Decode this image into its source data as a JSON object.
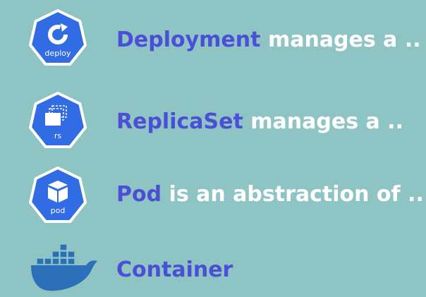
{
  "items": [
    {
      "icon_label": "deploy",
      "keyword": "Deployment",
      "text": "manages a .."
    },
    {
      "icon_label": "rs",
      "keyword": "ReplicaSet",
      "text": "manages a .."
    },
    {
      "icon_label": "pod",
      "keyword": "Pod",
      "text": "is an abstraction of .."
    },
    {
      "keyword": "Container"
    }
  ]
}
